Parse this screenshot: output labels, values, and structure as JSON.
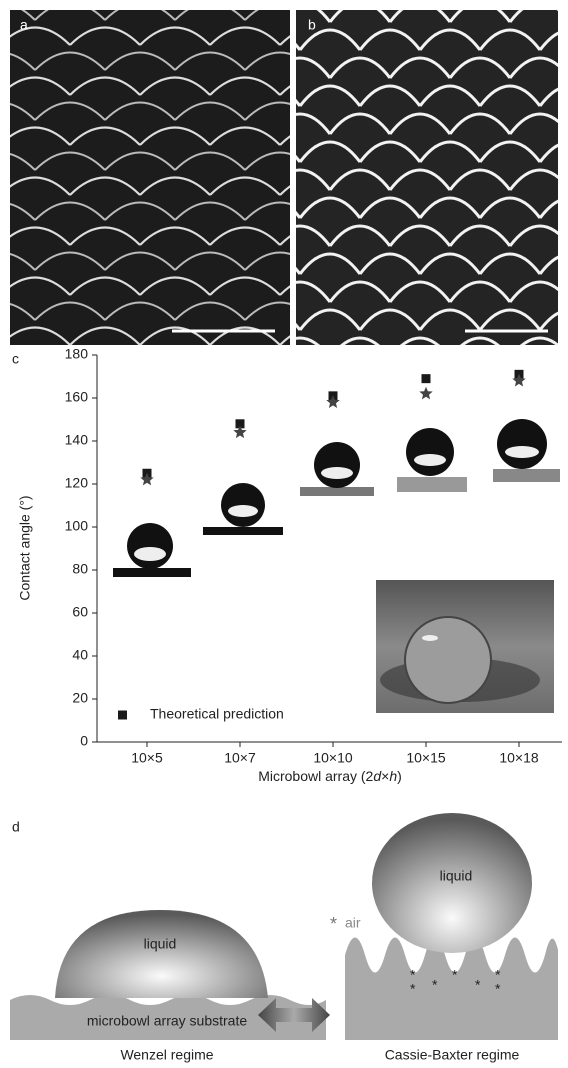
{
  "panels": {
    "a": {
      "label": "a"
    },
    "b": {
      "label": "b"
    }
  },
  "chart_data": {
    "type": "scatter",
    "panel_label": "c",
    "categories": [
      "10×5",
      "10×7",
      "10×10",
      "10×15",
      "10×18"
    ],
    "series": [
      {
        "name": "Theoretical prediction",
        "color": "#1a1a1a",
        "values": [
          125,
          148,
          161,
          169,
          171
        ]
      },
      {
        "color": "#444444",
        "values": [
          122,
          144,
          158,
          162,
          168
        ]
      }
    ],
    "ylabel": "Contact angle (°)",
    "xlabel_parts": [
      "Microbowl array (2",
      "d",
      "×",
      "h",
      ")"
    ],
    "ylim": [
      0,
      180
    ],
    "yticks": [
      0,
      20,
      40,
      60,
      80,
      100,
      120,
      140,
      160,
      180
    ],
    "legend": "lower left"
  },
  "diagram": {
    "label": "d",
    "left": {
      "liquid": "liquid",
      "substrate": "microbowl array substrate",
      "caption": "Wenzel regime"
    },
    "right": {
      "liquid": "liquid",
      "air": "air",
      "caption": "Cassie-Baxter regime"
    }
  }
}
